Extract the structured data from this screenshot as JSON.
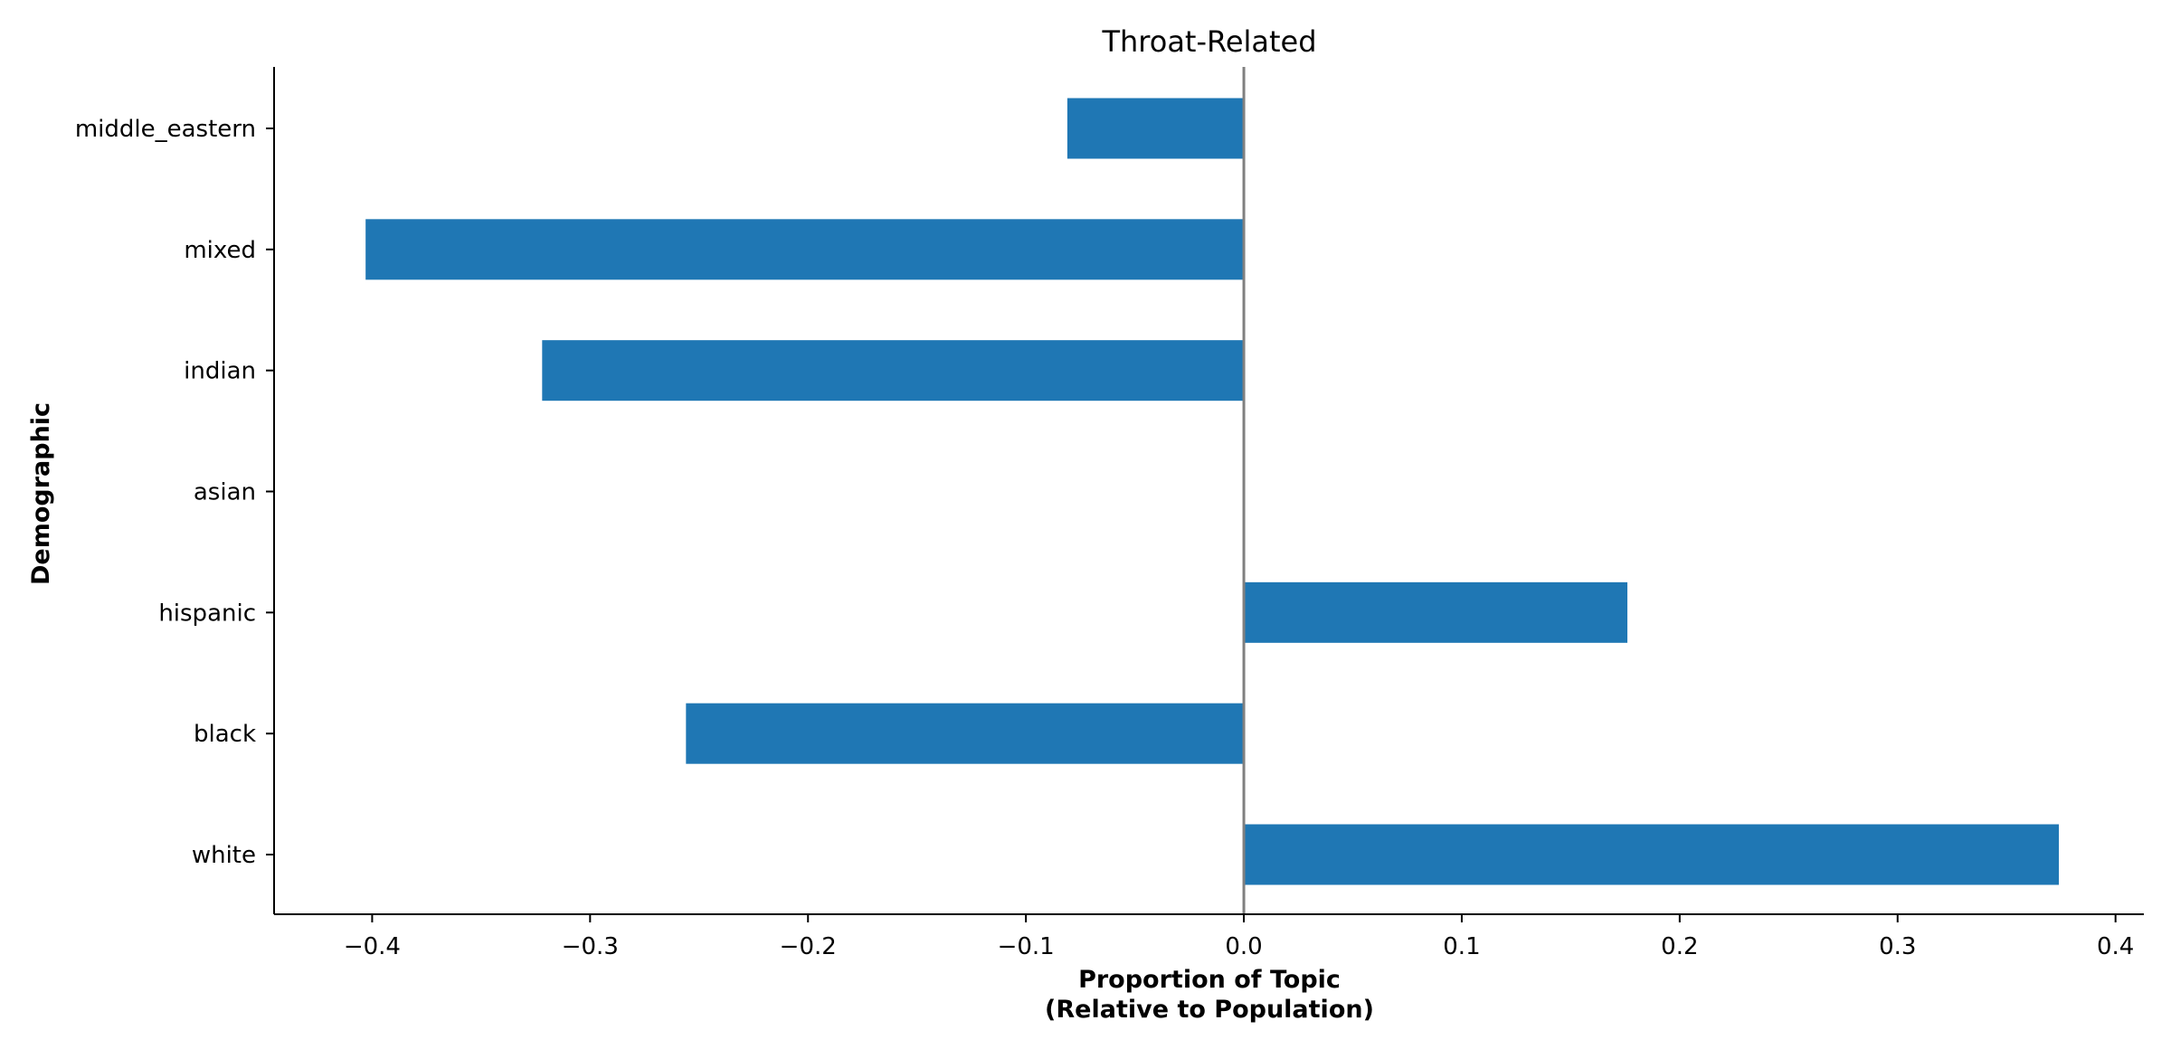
{
  "chart_data": {
    "type": "bar",
    "orientation": "horizontal",
    "title": "Throat-Related",
    "xlabel_lines": [
      "Proportion of Topic",
      "(Relative to Population)"
    ],
    "ylabel": "Demographic",
    "categories": [
      "white",
      "black",
      "hispanic",
      "asian",
      "indian",
      "mixed",
      "middle_eastern"
    ],
    "values": [
      0.374,
      -0.256,
      0.176,
      0.0,
      -0.322,
      -0.403,
      -0.081
    ],
    "xlim": [
      -0.445,
      0.413
    ],
    "xticks": [
      -0.4,
      -0.3,
      -0.2,
      -0.1,
      0.0,
      0.1,
      0.2,
      0.3,
      0.4
    ],
    "xtick_labels": [
      "−0.4",
      "−0.3",
      "−0.2",
      "−0.1",
      "0.0",
      "0.1",
      "0.2",
      "0.3",
      "0.4"
    ],
    "bar_color": "#1f77b4",
    "zero_line_color": "#808080",
    "grid": false,
    "legend": "none"
  }
}
